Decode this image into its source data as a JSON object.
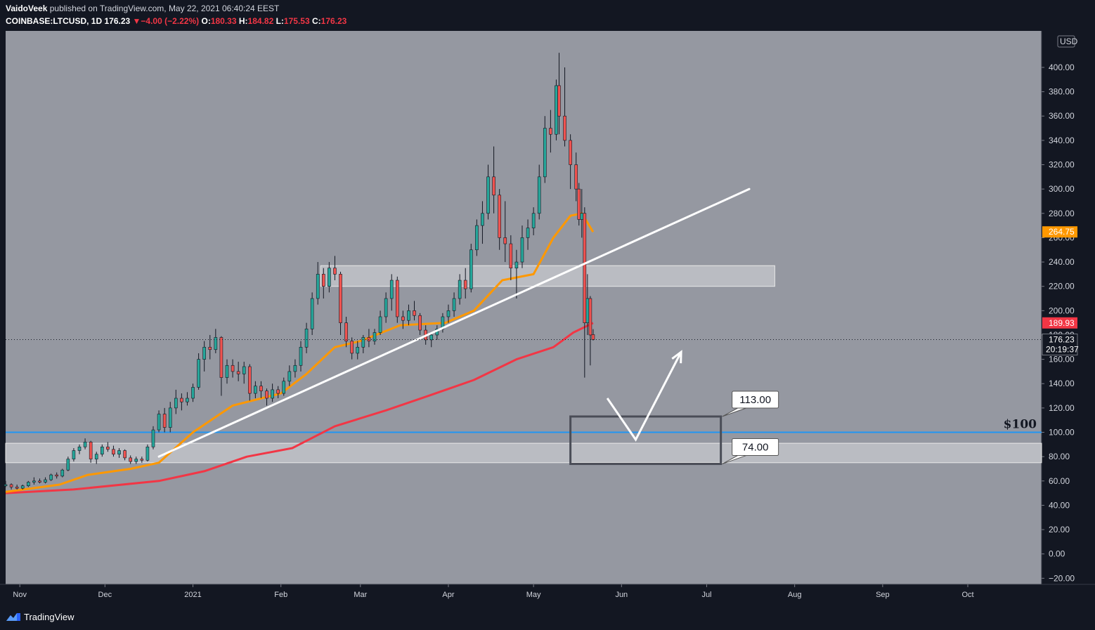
{
  "header": {
    "author": "VaidoVeek",
    "published_text": "published on TradingView.com, May 22, 2021 06:40:24 EEST",
    "symbol": "COINBASE:LTCUSD, 1D",
    "last": "176.23",
    "change_arrow": "▼",
    "change": "−4.00 (−2.22%)",
    "o_label": "O:",
    "o_value": "180.33",
    "h_label": "H:",
    "h_value": "184.82",
    "l_label": "L:",
    "l_value": "175.53",
    "c_label": "C:",
    "c_value": "176.23"
  },
  "footer": {
    "brand": "TradingView",
    "logo_icon": "tradingview-logo-icon"
  },
  "colors": {
    "background": "#131722",
    "plot_bg": "#9598a1",
    "up_candle": "#26a69a",
    "down_candle": "#ef5350",
    "ema_fast": "#ff9800",
    "ema_slow": "#f23645",
    "trendline": "#ffffff",
    "horizontal_line": "#2196f3"
  },
  "chart_data": {
    "type": "candlestick",
    "symbol": "COINBASE:LTCUSD",
    "interval": "1D",
    "currency_label": "USD",
    "y_ticks": [
      400,
      380,
      360,
      340,
      320,
      300,
      280,
      260,
      240,
      220,
      200,
      180,
      160,
      140,
      120,
      100,
      80,
      60,
      40,
      20,
      0,
      -20
    ],
    "y_ticks_text": [
      "400.00",
      "380.00",
      "360.00",
      "340.00",
      "320.00",
      "300.00",
      "280.00",
      "260.00",
      "240.00",
      "220.00",
      "200.00",
      "180.00",
      "160.00",
      "140.00",
      "120.00",
      "100.00",
      "80.00",
      "60.00",
      "40.00",
      "20.00",
      "0.00",
      "−20.00"
    ],
    "ylim": [
      -25,
      430
    ],
    "x_ticks": [
      {
        "label": "Nov",
        "date": "2020-11-01"
      },
      {
        "label": "Dec",
        "date": "2020-12-01"
      },
      {
        "label": "2021",
        "date": "2021-01-01"
      },
      {
        "label": "Feb",
        "date": "2021-02-01"
      },
      {
        "label": "Mar",
        "date": "2021-03-01"
      },
      {
        "label": "Apr",
        "date": "2021-04-01"
      },
      {
        "label": "May",
        "date": "2021-05-01"
      },
      {
        "label": "Jun",
        "date": "2021-06-01"
      },
      {
        "label": "Jul",
        "date": "2021-07-01"
      },
      {
        "label": "Aug",
        "date": "2021-08-01"
      },
      {
        "label": "Sep",
        "date": "2021-09-01"
      },
      {
        "label": "Oct",
        "date": "2021-10-01"
      }
    ],
    "xlim": [
      "2020-10-27",
      "2021-10-27"
    ],
    "candles": [
      {
        "date": "2020-10-27",
        "o": 56,
        "h": 60,
        "l": 55,
        "c": 57
      },
      {
        "date": "2020-10-29",
        "o": 57,
        "h": 58,
        "l": 53,
        "c": 55
      },
      {
        "date": "2020-10-31",
        "o": 55,
        "h": 57,
        "l": 53,
        "c": 54
      },
      {
        "date": "2020-11-02",
        "o": 54,
        "h": 57,
        "l": 53,
        "c": 56
      },
      {
        "date": "2020-11-04",
        "o": 56,
        "h": 60,
        "l": 55,
        "c": 59
      },
      {
        "date": "2020-11-06",
        "o": 59,
        "h": 63,
        "l": 57,
        "c": 60
      },
      {
        "date": "2020-11-08",
        "o": 60,
        "h": 62,
        "l": 58,
        "c": 59
      },
      {
        "date": "2020-11-10",
        "o": 59,
        "h": 63,
        "l": 58,
        "c": 61
      },
      {
        "date": "2020-11-12",
        "o": 61,
        "h": 66,
        "l": 60,
        "c": 65
      },
      {
        "date": "2020-11-14",
        "o": 65,
        "h": 67,
        "l": 62,
        "c": 64
      },
      {
        "date": "2020-11-16",
        "o": 64,
        "h": 70,
        "l": 63,
        "c": 69
      },
      {
        "date": "2020-11-18",
        "o": 69,
        "h": 80,
        "l": 68,
        "c": 78
      },
      {
        "date": "2020-11-20",
        "o": 78,
        "h": 87,
        "l": 76,
        "c": 85
      },
      {
        "date": "2020-11-22",
        "o": 85,
        "h": 90,
        "l": 82,
        "c": 88
      },
      {
        "date": "2020-11-24",
        "o": 88,
        "h": 95,
        "l": 86,
        "c": 92
      },
      {
        "date": "2020-11-26",
        "o": 92,
        "h": 93,
        "l": 75,
        "c": 78
      },
      {
        "date": "2020-11-28",
        "o": 78,
        "h": 84,
        "l": 74,
        "c": 82
      },
      {
        "date": "2020-11-30",
        "o": 82,
        "h": 90,
        "l": 80,
        "c": 88
      },
      {
        "date": "2020-12-02",
        "o": 88,
        "h": 92,
        "l": 84,
        "c": 86
      },
      {
        "date": "2020-12-04",
        "o": 86,
        "h": 89,
        "l": 80,
        "c": 82
      },
      {
        "date": "2020-12-06",
        "o": 82,
        "h": 87,
        "l": 79,
        "c": 85
      },
      {
        "date": "2020-12-08",
        "o": 85,
        "h": 86,
        "l": 77,
        "c": 79
      },
      {
        "date": "2020-12-10",
        "o": 79,
        "h": 81,
        "l": 74,
        "c": 76
      },
      {
        "date": "2020-12-12",
        "o": 76,
        "h": 80,
        "l": 74,
        "c": 78
      },
      {
        "date": "2020-12-14",
        "o": 78,
        "h": 80,
        "l": 75,
        "c": 77
      },
      {
        "date": "2020-12-16",
        "o": 77,
        "h": 90,
        "l": 76,
        "c": 88
      },
      {
        "date": "2020-12-18",
        "o": 88,
        "h": 105,
        "l": 86,
        "c": 102
      },
      {
        "date": "2020-12-20",
        "o": 102,
        "h": 118,
        "l": 100,
        "c": 115
      },
      {
        "date": "2020-12-22",
        "o": 115,
        "h": 120,
        "l": 100,
        "c": 104
      },
      {
        "date": "2020-12-24",
        "o": 104,
        "h": 125,
        "l": 100,
        "c": 120
      },
      {
        "date": "2020-12-26",
        "o": 120,
        "h": 135,
        "l": 115,
        "c": 128
      },
      {
        "date": "2020-12-28",
        "o": 128,
        "h": 132,
        "l": 118,
        "c": 125
      },
      {
        "date": "2020-12-30",
        "o": 125,
        "h": 133,
        "l": 122,
        "c": 128
      },
      {
        "date": "2021-01-01",
        "o": 128,
        "h": 140,
        "l": 125,
        "c": 137
      },
      {
        "date": "2021-01-03",
        "o": 137,
        "h": 165,
        "l": 135,
        "c": 160
      },
      {
        "date": "2021-01-05",
        "o": 160,
        "h": 175,
        "l": 150,
        "c": 170
      },
      {
        "date": "2021-01-07",
        "o": 170,
        "h": 180,
        "l": 160,
        "c": 168
      },
      {
        "date": "2021-01-09",
        "o": 168,
        "h": 185,
        "l": 165,
        "c": 178
      },
      {
        "date": "2021-01-11",
        "o": 178,
        "h": 179,
        "l": 130,
        "c": 145
      },
      {
        "date": "2021-01-13",
        "o": 145,
        "h": 160,
        "l": 140,
        "c": 155
      },
      {
        "date": "2021-01-15",
        "o": 155,
        "h": 160,
        "l": 145,
        "c": 150
      },
      {
        "date": "2021-01-17",
        "o": 150,
        "h": 158,
        "l": 142,
        "c": 148
      },
      {
        "date": "2021-01-19",
        "o": 148,
        "h": 158,
        "l": 140,
        "c": 154
      },
      {
        "date": "2021-01-21",
        "o": 154,
        "h": 156,
        "l": 126,
        "c": 132
      },
      {
        "date": "2021-01-23",
        "o": 132,
        "h": 142,
        "l": 128,
        "c": 138
      },
      {
        "date": "2021-01-25",
        "o": 138,
        "h": 142,
        "l": 128,
        "c": 134
      },
      {
        "date": "2021-01-27",
        "o": 134,
        "h": 136,
        "l": 122,
        "c": 128
      },
      {
        "date": "2021-01-29",
        "o": 128,
        "h": 140,
        "l": 125,
        "c": 135
      },
      {
        "date": "2021-01-31",
        "o": 135,
        "h": 138,
        "l": 128,
        "c": 132
      },
      {
        "date": "2021-02-02",
        "o": 132,
        "h": 145,
        "l": 130,
        "c": 142
      },
      {
        "date": "2021-02-04",
        "o": 142,
        "h": 155,
        "l": 138,
        "c": 150
      },
      {
        "date": "2021-02-06",
        "o": 150,
        "h": 160,
        "l": 145,
        "c": 155
      },
      {
        "date": "2021-02-08",
        "o": 155,
        "h": 175,
        "l": 150,
        "c": 170
      },
      {
        "date": "2021-02-10",
        "o": 170,
        "h": 190,
        "l": 165,
        "c": 185
      },
      {
        "date": "2021-02-12",
        "o": 185,
        "h": 215,
        "l": 180,
        "c": 210
      },
      {
        "date": "2021-02-14",
        "o": 210,
        "h": 240,
        "l": 205,
        "c": 230
      },
      {
        "date": "2021-02-16",
        "o": 230,
        "h": 235,
        "l": 210,
        "c": 220
      },
      {
        "date": "2021-02-18",
        "o": 220,
        "h": 240,
        "l": 215,
        "c": 235
      },
      {
        "date": "2021-02-20",
        "o": 235,
        "h": 245,
        "l": 225,
        "c": 230
      },
      {
        "date": "2021-02-22",
        "o": 230,
        "h": 232,
        "l": 180,
        "c": 190
      },
      {
        "date": "2021-02-24",
        "o": 190,
        "h": 195,
        "l": 170,
        "c": 175
      },
      {
        "date": "2021-02-26",
        "o": 175,
        "h": 178,
        "l": 160,
        "c": 165
      },
      {
        "date": "2021-02-28",
        "o": 165,
        "h": 175,
        "l": 160,
        "c": 170
      },
      {
        "date": "2021-03-02",
        "o": 170,
        "h": 180,
        "l": 165,
        "c": 178
      },
      {
        "date": "2021-03-04",
        "o": 178,
        "h": 185,
        "l": 170,
        "c": 175
      },
      {
        "date": "2021-03-06",
        "o": 175,
        "h": 185,
        "l": 172,
        "c": 182
      },
      {
        "date": "2021-03-08",
        "o": 182,
        "h": 200,
        "l": 180,
        "c": 195
      },
      {
        "date": "2021-03-10",
        "o": 195,
        "h": 215,
        "l": 190,
        "c": 210
      },
      {
        "date": "2021-03-12",
        "o": 210,
        "h": 230,
        "l": 200,
        "c": 225
      },
      {
        "date": "2021-03-14",
        "o": 225,
        "h": 228,
        "l": 190,
        "c": 195
      },
      {
        "date": "2021-03-16",
        "o": 195,
        "h": 200,
        "l": 185,
        "c": 192
      },
      {
        "date": "2021-03-18",
        "o": 192,
        "h": 205,
        "l": 188,
        "c": 200
      },
      {
        "date": "2021-03-20",
        "o": 200,
        "h": 208,
        "l": 192,
        "c": 196
      },
      {
        "date": "2021-03-22",
        "o": 196,
        "h": 198,
        "l": 180,
        "c": 184
      },
      {
        "date": "2021-03-24",
        "o": 184,
        "h": 188,
        "l": 172,
        "c": 176
      },
      {
        "date": "2021-03-26",
        "o": 176,
        "h": 182,
        "l": 170,
        "c": 180
      },
      {
        "date": "2021-03-28",
        "o": 180,
        "h": 188,
        "l": 176,
        "c": 185
      },
      {
        "date": "2021-03-30",
        "o": 185,
        "h": 198,
        "l": 182,
        "c": 195
      },
      {
        "date": "2021-04-01",
        "o": 195,
        "h": 205,
        "l": 190,
        "c": 200
      },
      {
        "date": "2021-04-03",
        "o": 200,
        "h": 215,
        "l": 195,
        "c": 210
      },
      {
        "date": "2021-04-05",
        "o": 210,
        "h": 230,
        "l": 205,
        "c": 225
      },
      {
        "date": "2021-04-07",
        "o": 225,
        "h": 235,
        "l": 210,
        "c": 218
      },
      {
        "date": "2021-04-09",
        "o": 218,
        "h": 255,
        "l": 215,
        "c": 250
      },
      {
        "date": "2021-04-11",
        "o": 250,
        "h": 275,
        "l": 245,
        "c": 270
      },
      {
        "date": "2021-04-13",
        "o": 270,
        "h": 290,
        "l": 255,
        "c": 280
      },
      {
        "date": "2021-04-15",
        "o": 280,
        "h": 320,
        "l": 275,
        "c": 310
      },
      {
        "date": "2021-04-17",
        "o": 310,
        "h": 335,
        "l": 280,
        "c": 295
      },
      {
        "date": "2021-04-19",
        "o": 295,
        "h": 300,
        "l": 250,
        "c": 260
      },
      {
        "date": "2021-04-21",
        "o": 260,
        "h": 290,
        "l": 240,
        "c": 255
      },
      {
        "date": "2021-04-23",
        "o": 255,
        "h": 262,
        "l": 225,
        "c": 235
      },
      {
        "date": "2021-04-25",
        "o": 235,
        "h": 250,
        "l": 210,
        "c": 240
      },
      {
        "date": "2021-04-27",
        "o": 240,
        "h": 270,
        "l": 235,
        "c": 260
      },
      {
        "date": "2021-04-29",
        "o": 260,
        "h": 275,
        "l": 250,
        "c": 268
      },
      {
        "date": "2021-05-01",
        "o": 268,
        "h": 285,
        "l": 262,
        "c": 280
      },
      {
        "date": "2021-05-03",
        "o": 280,
        "h": 320,
        "l": 275,
        "c": 310
      },
      {
        "date": "2021-05-05",
        "o": 310,
        "h": 360,
        "l": 305,
        "c": 350
      },
      {
        "date": "2021-05-07",
        "o": 350,
        "h": 365,
        "l": 330,
        "c": 345
      },
      {
        "date": "2021-05-09",
        "o": 345,
        "h": 390,
        "l": 340,
        "c": 385
      },
      {
        "date": "2021-05-10",
        "o": 385,
        "h": 412,
        "l": 345,
        "c": 360
      },
      {
        "date": "2021-05-12",
        "o": 360,
        "h": 400,
        "l": 335,
        "c": 340
      },
      {
        "date": "2021-05-14",
        "o": 340,
        "h": 345,
        "l": 300,
        "c": 320
      },
      {
        "date": "2021-05-16",
        "o": 320,
        "h": 330,
        "l": 290,
        "c": 300
      },
      {
        "date": "2021-05-17",
        "o": 300,
        "h": 305,
        "l": 270,
        "c": 275
      },
      {
        "date": "2021-05-18",
        "o": 275,
        "h": 300,
        "l": 260,
        "c": 280
      },
      {
        "date": "2021-05-19",
        "o": 280,
        "h": 285,
        "l": 145,
        "c": 190
      },
      {
        "date": "2021-05-20",
        "o": 190,
        "h": 230,
        "l": 180,
        "c": 210
      },
      {
        "date": "2021-05-21",
        "o": 210,
        "h": 212,
        "l": 155,
        "c": 180
      },
      {
        "date": "2021-05-22",
        "o": 180.33,
        "h": 184.82,
        "l": 175.53,
        "c": 176.23
      }
    ],
    "ema_fast": {
      "name": "EMA",
      "last_value": "264.75",
      "points": [
        {
          "date": "2020-10-27",
          "v": 51
        },
        {
          "date": "2020-11-15",
          "v": 57
        },
        {
          "date": "2020-11-25",
          "v": 65
        },
        {
          "date": "2020-12-10",
          "v": 70
        },
        {
          "date": "2020-12-20",
          "v": 75
        },
        {
          "date": "2021-01-01",
          "v": 100
        },
        {
          "date": "2021-01-15",
          "v": 122
        },
        {
          "date": "2021-02-01",
          "v": 132
        },
        {
          "date": "2021-02-10",
          "v": 148
        },
        {
          "date": "2021-02-20",
          "v": 170
        },
        {
          "date": "2021-03-01",
          "v": 175
        },
        {
          "date": "2021-03-15",
          "v": 188
        },
        {
          "date": "2021-03-31",
          "v": 190
        },
        {
          "date": "2021-04-10",
          "v": 200
        },
        {
          "date": "2021-04-20",
          "v": 225
        },
        {
          "date": "2021-05-01",
          "v": 230
        },
        {
          "date": "2021-05-08",
          "v": 260
        },
        {
          "date": "2021-05-14",
          "v": 278
        },
        {
          "date": "2021-05-18",
          "v": 280
        },
        {
          "date": "2021-05-22",
          "v": 264.75
        }
      ]
    },
    "ema_slow": {
      "name": "EMA",
      "last_value": "189.93",
      "points": [
        {
          "date": "2020-10-27",
          "v": 50
        },
        {
          "date": "2020-11-20",
          "v": 53
        },
        {
          "date": "2020-12-20",
          "v": 60
        },
        {
          "date": "2021-01-05",
          "v": 68
        },
        {
          "date": "2021-01-20",
          "v": 80
        },
        {
          "date": "2021-02-05",
          "v": 87
        },
        {
          "date": "2021-02-20",
          "v": 105
        },
        {
          "date": "2021-03-10",
          "v": 118
        },
        {
          "date": "2021-03-25",
          "v": 130
        },
        {
          "date": "2021-04-10",
          "v": 143
        },
        {
          "date": "2021-04-25",
          "v": 160
        },
        {
          "date": "2021-05-08",
          "v": 170
        },
        {
          "date": "2021-05-15",
          "v": 182
        },
        {
          "date": "2021-05-22",
          "v": 189.93
        }
      ]
    },
    "trendline": {
      "from": {
        "date": "2020-12-20",
        "v": 80
      },
      "to": {
        "date": "2021-07-16",
        "v": 300
      }
    },
    "zones": [
      {
        "name": "resistance-zone",
        "from": "2021-02-15",
        "to": "2021-07-25",
        "y0": 220,
        "y1": 237
      },
      {
        "name": "support-zone",
        "from": "2020-10-27",
        "to": "2021-10-27",
        "y0": 75,
        "y1": 91
      }
    ],
    "target_box": {
      "from": "2021-05-14",
      "to": "2021-07-06",
      "y0": 74,
      "y1": 113
    },
    "callouts": [
      {
        "text": "113.00",
        "date": "2021-07-06",
        "v": 113
      },
      {
        "text": "74.00",
        "date": "2021-07-06",
        "v": 74
      }
    ],
    "horizontal_line": {
      "value": 100,
      "label": "$100",
      "axis_label": "100.00"
    },
    "projection_arrow": [
      {
        "date": "2021-05-27",
        "v": 128
      },
      {
        "date": "2021-06-06",
        "v": 94
      },
      {
        "date": "2021-06-22",
        "v": 166
      }
    ],
    "last_price_label": {
      "value": "176.23",
      "countdown": "20:19:37"
    },
    "axis_badges": [
      {
        "value": 264.75,
        "text": "264.75",
        "color": "#ff9800"
      },
      {
        "value": 189.93,
        "text": "189.93",
        "color": "#f23645"
      }
    ]
  }
}
